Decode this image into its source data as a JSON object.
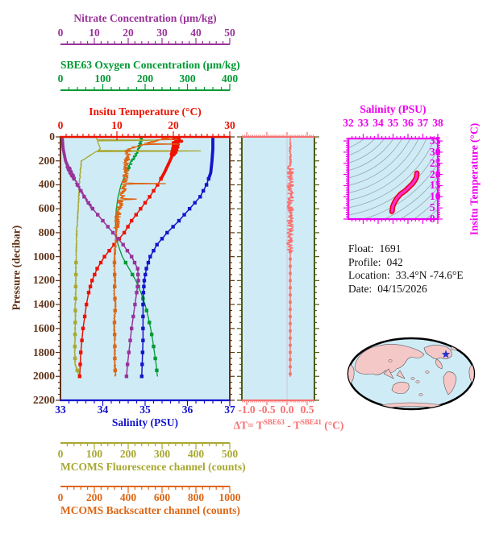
{
  "page": {
    "background": "#ffffff",
    "plot_background": "#cfecf6"
  },
  "metadata": {
    "float_label": "Float:",
    "float_value": "1691",
    "profile_label": "Profile:",
    "profile_value": "042",
    "location_label": "Location:",
    "location_value": "33.4°N  -74.6°E",
    "date_label": "Date:",
    "date_value": "04/15/2026"
  },
  "axes": {
    "nitrate": {
      "title": "Nitrate Concentration (µm/kg)",
      "color": "#993399",
      "range": [
        0,
        50
      ],
      "tick_values": [
        0,
        10,
        20,
        30,
        40,
        50
      ],
      "tick_labels": [
        "0",
        "10",
        "20",
        "30",
        "40",
        "50"
      ],
      "minor_step": 2
    },
    "oxygen": {
      "title": "SBE63 Oxygen Concentration (µm/kg)",
      "color": "#009933",
      "range": [
        0,
        400
      ],
      "tick_values": [
        0,
        100,
        200,
        300,
        400
      ],
      "tick_labels": [
        "0",
        "100",
        "200",
        "300",
        "400"
      ],
      "minor_step": 20
    },
    "temperature": {
      "title": "Insitu Temperature (°C)",
      "color": "#ee1100",
      "range": [
        0,
        30
      ],
      "tick_values": [
        0,
        10,
        20,
        30
      ],
      "tick_labels": [
        "0",
        "10",
        "20",
        "30"
      ],
      "minor_step": 1
    },
    "pressure": {
      "title": "Pressure (decibar)",
      "color": "#5e3217",
      "range": [
        0,
        2200
      ],
      "tick_values": [
        0,
        200,
        400,
        600,
        800,
        1000,
        1200,
        1400,
        1600,
        1800,
        2000,
        2200
      ],
      "tick_labels": [
        "0",
        "200",
        "400",
        "600",
        "800",
        "1000",
        "1200",
        "1400",
        "1600",
        "1800",
        "2000",
        "2200"
      ],
      "minor_step": 50
    },
    "salinity": {
      "title": "Salinity (PSU)",
      "color": "#1414cc",
      "range": [
        33,
        37
      ],
      "tick_values": [
        33,
        34,
        35,
        36,
        37
      ],
      "tick_labels": [
        "33",
        "34",
        "35",
        "36",
        "37"
      ],
      "minor_step": 0.2
    },
    "fluorescence": {
      "title": "MCOMS Fluorescence channel (counts)",
      "color": "#a8a832",
      "range": [
        0,
        500
      ],
      "tick_values": [
        0,
        100,
        200,
        300,
        400,
        500
      ],
      "tick_labels": [
        "0",
        "100",
        "200",
        "300",
        "400",
        "500"
      ],
      "minor_step": 20
    },
    "backscatter": {
      "title": "MCOMS Backscatter channel (counts)",
      "color": "#dd6614",
      "range": [
        0,
        1000
      ],
      "tick_values": [
        0,
        200,
        400,
        600,
        800,
        1000
      ],
      "tick_labels": [
        "0",
        "200",
        "400",
        "600",
        "800",
        "1000"
      ],
      "minor_step": 40
    },
    "delta_t": {
      "label_parts": {
        "prefix": "ΔT= T",
        "sup1": "SBE63",
        "mid": " - T",
        "sup2": "SBE41",
        "suffix": " (°C)"
      },
      "color": "#f87070",
      "frame_color": "#4f5a14",
      "range": [
        -1.12,
        0.68
      ],
      "tick_values": [
        -1.0,
        -0.5,
        0.0,
        0.5
      ],
      "tick_labels": [
        "-1.0",
        "-0.5",
        "0.0",
        "0.5"
      ],
      "minor_step": 0.05
    },
    "ts": {
      "x_title": "Salinity (PSU)",
      "y_title": "Insitu Temperature (°C)",
      "color": "#ee00ee",
      "x_range": [
        32,
        38
      ],
      "x_tick_values": [
        32,
        33,
        34,
        35,
        36,
        37,
        38
      ],
      "x_tick_labels": [
        "32",
        "33",
        "34",
        "35",
        "36",
        "37",
        "38"
      ],
      "y_range": [
        0,
        36.1
      ],
      "y_tick_values": [
        35,
        30,
        25,
        20,
        15,
        10,
        5,
        0
      ],
      "y_tick_labels": [
        "35",
        "30",
        "25",
        "20",
        "15",
        "10",
        "5",
        "0"
      ],
      "contour_color": "#98a5aa",
      "curve_core": "#ff2fd0",
      "curve_edge": "#e8001a"
    }
  },
  "chart_data": [
    {
      "id": "main-profile",
      "type": "line",
      "orientation": "vertical-profile",
      "y_axis_title": "Pressure (decibar)",
      "y_range": [
        0,
        2200
      ],
      "grid": false,
      "depths": [
        0,
        100,
        200,
        300,
        400,
        500,
        600,
        700,
        800,
        900,
        1000,
        1100,
        1200,
        1300,
        1400,
        1500,
        1600,
        1700,
        1800,
        1900,
        2000
      ],
      "series": [
        {
          "axis": "oxygen",
          "name": "SBE63 Oxygen Concentration (µm/kg)",
          "style": "thin-markers",
          "values": [
            192,
            185,
            170,
            155,
            143,
            136,
            132,
            130,
            131,
            136,
            146,
            162,
            178,
            190,
            200,
            207,
            213,
            218,
            222,
            226,
            229
          ],
          "noise": [
            {
              "depths": [
                0,
                280
              ],
              "amp": 4
            }
          ]
        },
        {
          "axis": "fluorescence",
          "name": "MCOMS Fluorescence channel (counts)",
          "style": "thin-markers",
          "values": [
            105,
            118,
            62,
            58,
            56,
            54,
            52,
            50,
            48,
            47,
            46,
            46,
            45,
            45,
            44,
            44,
            43,
            43,
            42,
            44,
            55
          ],
          "noise": [
            {
              "depths": [
                150,
                2000
              ],
              "amp": 1.5
            }
          ],
          "spikes": [
            {
              "depth": 28,
              "value": 355
            },
            {
              "depth": 118,
              "value": 515
            }
          ]
        },
        {
          "axis": "temperature",
          "name": "Insitu Temperature (°C)",
          "style": "thick-markers",
          "values": [
            20.6,
            20.3,
            19.4,
            18.4,
            17.2,
            15.8,
            14.2,
            12.6,
            11.3,
            9.5,
            7.8,
            6.5,
            5.6,
            5.0,
            4.6,
            4.3,
            4.0,
            3.8,
            3.6,
            3.5,
            3.4
          ],
          "noise": [
            {
              "depths": [
                0,
                150
              ],
              "amp": 0.5
            }
          ],
          "spikes": [
            {
              "depth": 35,
              "value": 21.9
            }
          ]
        },
        {
          "axis": "backscatter",
          "name": "MCOMS Backscatter channel (counts)",
          "style": "thin-markers",
          "values": [
            640,
            400,
            390,
            385,
            378,
            362,
            345,
            335,
            330,
            325,
            320,
            318,
            322,
            318,
            325,
            320,
            318,
            322,
            320,
            322,
            324
          ],
          "noise": [
            {
              "depths": [
                0,
                760
              ],
              "amp": 18
            },
            {
              "depths": [
                760,
                2000
              ],
              "amp": 5
            }
          ],
          "spikes": [
            {
              "depth": 20,
              "value": 730
            },
            {
              "depth": 60,
              "value": 700
            },
            {
              "depth": 390,
              "value": 620
            },
            {
              "depth": 520,
              "value": 480
            }
          ]
        },
        {
          "axis": "nitrate",
          "name": "Nitrate Concentration (µm/kg)",
          "style": "thick-markers",
          "values": [
            0.5,
            0.8,
            1.5,
            3.0,
            5.0,
            7.0,
            9.5,
            12.5,
            15.5,
            18.5,
            21.0,
            22.8,
            23.0,
            22.5,
            22.0,
            21.5,
            21.0,
            20.6,
            20.2,
            19.8,
            19.5
          ],
          "noise": [
            {
              "depths": [
                250,
                600
              ],
              "amp": 0.4
            }
          ]
        },
        {
          "axis": "salinity",
          "name": "Salinity (PSU)",
          "style": "thick-markers",
          "values": [
            36.6,
            36.6,
            36.58,
            36.55,
            36.45,
            36.3,
            36.05,
            35.8,
            35.52,
            35.28,
            35.12,
            35.03,
            34.98,
            34.96,
            34.95,
            34.95,
            34.95,
            34.95,
            34.94,
            34.93,
            34.92
          ]
        }
      ]
    },
    {
      "id": "delta-t-profile",
      "type": "line",
      "orientation": "vertical-profile",
      "x_axis": "delta_t",
      "y_axis_title": "Pressure (decibar)",
      "depths": [
        0,
        100,
        200,
        300,
        400,
        500,
        600,
        700,
        800,
        900,
        1000,
        1100,
        1200,
        1300,
        1400,
        1500,
        1600,
        1700,
        1800,
        1900,
        2000
      ],
      "values": [
        0.08,
        0.08,
        0.08,
        0.08,
        0.08,
        0.08,
        0.08,
        0.08,
        0.08,
        0.08,
        0.08,
        0.08,
        0.08,
        0.08,
        0.08,
        0.08,
        0.08,
        0.08,
        0.08,
        0.08,
        0.08
      ],
      "noise": [
        {
          "depths": [
            50,
            240
          ],
          "amp": 0.03
        },
        {
          "depths": [
            240,
            960
          ],
          "amp": 0.08
        }
      ],
      "zero_gridline": 0.0
    },
    {
      "id": "ts-diagram",
      "type": "line",
      "x_title": "Salinity (PSU)",
      "y_title": "Insitu Temperature (°C)",
      "derived_from": "main-profile temperature vs salinity",
      "points_s": [
        36.6,
        36.58,
        36.45,
        36.05,
        35.52,
        35.12,
        34.98,
        34.95,
        34.95,
        34.93,
        34.92
      ],
      "points_t": [
        20.6,
        19.4,
        17.2,
        14.2,
        11.3,
        7.8,
        5.6,
        4.6,
        4.0,
        3.5,
        3.4
      ],
      "background": "isopycnal contour arcs, 17 gray lines"
    }
  ],
  "map": {
    "ocean_color": "#cfecf6",
    "land_color": "#f5c8c8",
    "outline_color": "#000000",
    "land_outline": "#555555",
    "marker_color": "#2233cc",
    "marker_shape": "star",
    "projection": "pacific-centered ellipse"
  }
}
